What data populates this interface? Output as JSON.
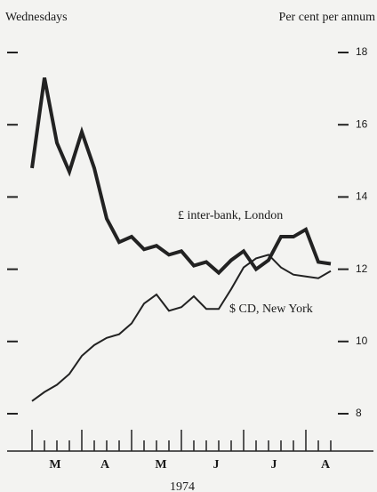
{
  "chart_data": {
    "type": "line",
    "x_header": "Wednesdays",
    "y_header": "Per cent per annum",
    "categories": [
      null,
      null,
      null,
      null,
      null,
      null,
      null,
      null,
      null,
      null,
      null,
      null,
      null,
      null,
      null,
      null,
      null,
      null,
      null,
      null,
      null,
      null,
      null,
      null,
      null
    ],
    "month_labels": [
      "M",
      "A",
      "M",
      "J",
      "J",
      "A"
    ],
    "xlabel": "1974",
    "series": [
      {
        "name": "£ inter-bank, London",
        "color": "#222222",
        "values": [
          14.8,
          17.3,
          15.5,
          14.7,
          15.8,
          14.8,
          13.4,
          12.75,
          12.9,
          12.55,
          12.65,
          12.4,
          12.5,
          12.1,
          12.2,
          11.9,
          12.25,
          12.5,
          12.0,
          12.25,
          12.9,
          12.9,
          13.1,
          12.2,
          12.15
        ]
      },
      {
        "name": "$ CD, New York",
        "color": "#222222",
        "values": [
          8.35,
          8.6,
          8.8,
          9.1,
          9.6,
          9.9,
          10.1,
          10.2,
          10.5,
          11.05,
          11.3,
          10.85,
          10.95,
          11.25,
          10.9,
          10.9,
          11.45,
          12.05,
          12.3,
          12.4,
          12.05,
          11.85,
          11.8,
          11.75,
          11.95
        ]
      }
    ],
    "ylim": [
      8,
      18
    ],
    "yticks": [
      8,
      10,
      12,
      14,
      16,
      18
    ]
  }
}
